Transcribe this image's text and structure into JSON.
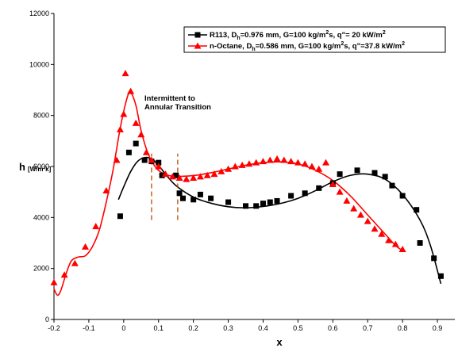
{
  "chart_data": {
    "type": "scatter",
    "xlabel": "x",
    "ylabel": "h",
    "ylabel_unit": "[W/m²k]",
    "xlim": [
      -0.2,
      0.95
    ],
    "ylim": [
      0,
      12000
    ],
    "x_ticks": [
      "-0.2",
      "-0.1",
      "0",
      "0.1",
      "0.2",
      "0.3",
      "0.4",
      "0.5",
      "0.6",
      "0.7",
      "0.8",
      "0.9"
    ],
    "y_ticks": [
      "0",
      "2000",
      "4000",
      "6000",
      "8000",
      "10000",
      "12000"
    ],
    "grid": false,
    "legend_position": "top-right",
    "annotation": {
      "line1": "Intermittent to",
      "line2": "Annular Transition",
      "dashed_x": [
        0.08,
        0.155
      ],
      "dashed_y": [
        3900,
        6500
      ]
    },
    "series": [
      {
        "name": "R113, Dh=0.976 mm, G=100 kg/m²s, q\"= 20 kW/m²",
        "legend_parts": [
          "R113, D",
          "h",
          "=0.976 mm, G=100 kg/m",
          "2",
          "s, q\"= 20 kW/m",
          "2"
        ],
        "color": "#000000",
        "marker": "square",
        "points": [
          [
            -0.01,
            4050
          ],
          [
            0.015,
            6550
          ],
          [
            0.035,
            6900
          ],
          [
            0.06,
            6250
          ],
          [
            0.08,
            6200
          ],
          [
            0.1,
            6150
          ],
          [
            0.11,
            5650
          ],
          [
            0.15,
            5650
          ],
          [
            0.16,
            4950
          ],
          [
            0.17,
            4750
          ],
          [
            0.2,
            4700
          ],
          [
            0.22,
            4900
          ],
          [
            0.25,
            4750
          ],
          [
            0.3,
            4600
          ],
          [
            0.35,
            4450
          ],
          [
            0.38,
            4450
          ],
          [
            0.4,
            4550
          ],
          [
            0.42,
            4600
          ],
          [
            0.44,
            4650
          ],
          [
            0.48,
            4850
          ],
          [
            0.52,
            4950
          ],
          [
            0.56,
            5150
          ],
          [
            0.6,
            5350
          ],
          [
            0.62,
            5700
          ],
          [
            0.67,
            5850
          ],
          [
            0.72,
            5750
          ],
          [
            0.75,
            5600
          ],
          [
            0.77,
            5250
          ],
          [
            0.8,
            4850
          ],
          [
            0.84,
            4300
          ],
          [
            0.85,
            3000
          ],
          [
            0.89,
            2400
          ],
          [
            0.91,
            1700
          ]
        ],
        "fit_curve": [
          [
            -0.015,
            4700
          ],
          [
            0.0,
            5200
          ],
          [
            0.02,
            5800
          ],
          [
            0.04,
            6200
          ],
          [
            0.06,
            6350
          ],
          [
            0.08,
            6300
          ],
          [
            0.1,
            6050
          ],
          [
            0.12,
            5700
          ],
          [
            0.15,
            5250
          ],
          [
            0.2,
            4800
          ],
          [
            0.25,
            4560
          ],
          [
            0.3,
            4420
          ],
          [
            0.35,
            4380
          ],
          [
            0.4,
            4430
          ],
          [
            0.45,
            4550
          ],
          [
            0.5,
            4750
          ],
          [
            0.55,
            5050
          ],
          [
            0.6,
            5400
          ],
          [
            0.65,
            5650
          ],
          [
            0.7,
            5700
          ],
          [
            0.75,
            5500
          ],
          [
            0.8,
            4900
          ],
          [
            0.85,
            3900
          ],
          [
            0.88,
            2900
          ],
          [
            0.91,
            1400
          ]
        ]
      },
      {
        "name": "n-Octane, Dh=0.586 mm, G=100 kg/m²s, q\"=37.8 kW/m²",
        "legend_parts": [
          "n-Octane, D",
          "h",
          "=0.586 mm, G=100 kg/m",
          "2",
          "s, q\"=37.8 kW/m",
          "2"
        ],
        "color": "#ff0000",
        "marker": "triangle",
        "points": [
          [
            -0.2,
            1450
          ],
          [
            -0.17,
            1750
          ],
          [
            -0.14,
            2200
          ],
          [
            -0.11,
            2850
          ],
          [
            -0.08,
            3650
          ],
          [
            -0.05,
            5050
          ],
          [
            -0.02,
            6250
          ],
          [
            -0.01,
            7450
          ],
          [
            0.0,
            8050
          ],
          [
            0.005,
            9650
          ],
          [
            0.02,
            8950
          ],
          [
            0.035,
            7700
          ],
          [
            0.05,
            7250
          ],
          [
            0.065,
            6550
          ],
          [
            0.08,
            6250
          ],
          [
            0.1,
            6000
          ],
          [
            0.12,
            5700
          ],
          [
            0.14,
            5600
          ],
          [
            0.16,
            5550
          ],
          [
            0.18,
            5500
          ],
          [
            0.2,
            5550
          ],
          [
            0.22,
            5600
          ],
          [
            0.24,
            5650
          ],
          [
            0.26,
            5700
          ],
          [
            0.28,
            5800
          ],
          [
            0.3,
            5900
          ],
          [
            0.32,
            6000
          ],
          [
            0.34,
            6050
          ],
          [
            0.36,
            6100
          ],
          [
            0.38,
            6150
          ],
          [
            0.4,
            6200
          ],
          [
            0.42,
            6250
          ],
          [
            0.44,
            6300
          ],
          [
            0.46,
            6250
          ],
          [
            0.48,
            6200
          ],
          [
            0.5,
            6150
          ],
          [
            0.52,
            6100
          ],
          [
            0.54,
            6000
          ],
          [
            0.56,
            5900
          ],
          [
            0.58,
            6150
          ],
          [
            0.6,
            5300
          ],
          [
            0.62,
            5000
          ],
          [
            0.64,
            4650
          ],
          [
            0.66,
            4350
          ],
          [
            0.68,
            4100
          ],
          [
            0.7,
            3850
          ],
          [
            0.72,
            3550
          ],
          [
            0.74,
            3350
          ],
          [
            0.76,
            3100
          ],
          [
            0.78,
            2950
          ],
          [
            0.8,
            2750
          ]
        ],
        "fit_curve": [
          [
            -0.2,
            1200
          ],
          [
            -0.19,
            950
          ],
          [
            -0.18,
            1150
          ],
          [
            -0.165,
            1800
          ],
          [
            -0.15,
            2300
          ],
          [
            -0.13,
            2450
          ],
          [
            -0.11,
            2500
          ],
          [
            -0.09,
            2850
          ],
          [
            -0.07,
            3500
          ],
          [
            -0.05,
            4600
          ],
          [
            -0.03,
            5900
          ],
          [
            -0.01,
            7500
          ],
          [
            0.01,
            8700
          ],
          [
            0.02,
            8900
          ],
          [
            0.035,
            8400
          ],
          [
            0.05,
            7400
          ],
          [
            0.07,
            6500
          ],
          [
            0.09,
            6000
          ],
          [
            0.11,
            5750
          ],
          [
            0.14,
            5620
          ],
          [
            0.18,
            5620
          ],
          [
            0.22,
            5680
          ],
          [
            0.26,
            5780
          ],
          [
            0.3,
            5900
          ],
          [
            0.35,
            6050
          ],
          [
            0.4,
            6150
          ],
          [
            0.45,
            6180
          ],
          [
            0.5,
            6100
          ],
          [
            0.55,
            5850
          ],
          [
            0.6,
            5450
          ],
          [
            0.65,
            4850
          ],
          [
            0.7,
            4100
          ],
          [
            0.75,
            3350
          ],
          [
            0.78,
            2900
          ],
          [
            0.8,
            2700
          ]
        ]
      }
    ]
  }
}
